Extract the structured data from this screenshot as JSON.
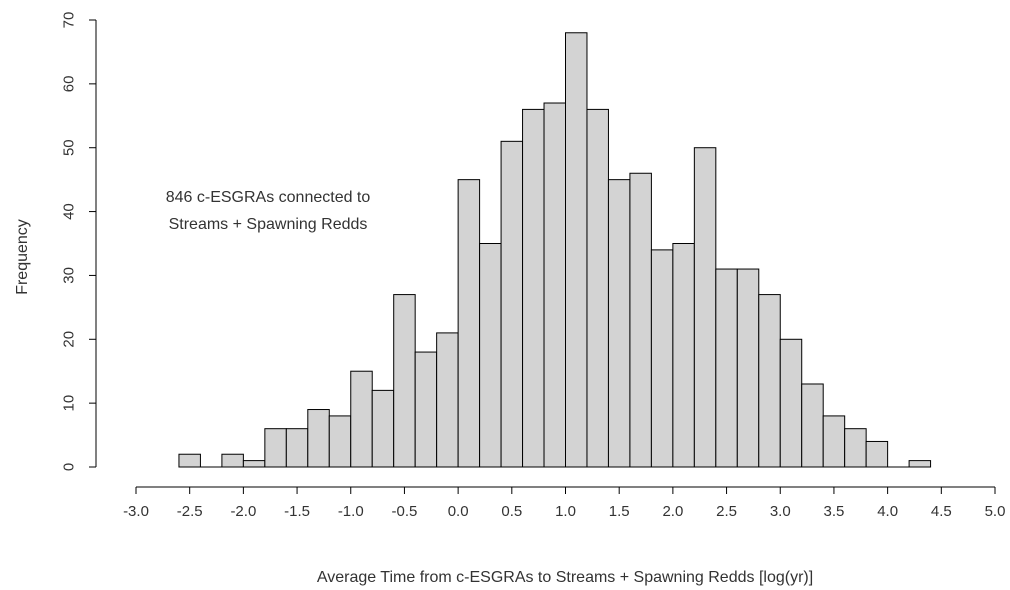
{
  "chart_data": {
    "type": "bar",
    "title": "",
    "xlabel": "Average Time from c-ESGRAs to Streams + Spawning Redds [log(yr)]",
    "ylabel": "Frequency",
    "annotation": [
      "846 c-ESGRAs connected to",
      "Streams + Spawning Redds"
    ],
    "xlim": [
      -3.0,
      5.0
    ],
    "ylim": [
      0,
      70
    ],
    "x_ticks": [
      "-3.0",
      "-2.5",
      "-2.0",
      "-1.5",
      "-1.0",
      "-0.5",
      "0.0",
      "0.5",
      "1.0",
      "1.5",
      "2.0",
      "2.5",
      "3.0",
      "3.5",
      "4.0",
      "4.5",
      "5.0"
    ],
    "y_ticks": [
      "0",
      "10",
      "20",
      "30",
      "40",
      "50",
      "60",
      "70"
    ],
    "bin_width": 0.2,
    "bin_starts": [
      -2.6,
      -2.4,
      -2.2,
      -2.0,
      -1.8,
      -1.6,
      -1.4,
      -1.2,
      -1.0,
      -0.8,
      -0.6,
      -0.4,
      -0.2,
      0.0,
      0.2,
      0.4,
      0.6,
      0.8,
      1.0,
      1.2,
      1.4,
      1.6,
      1.8,
      2.0,
      2.2,
      2.4,
      2.6,
      2.8,
      3.0,
      3.2,
      3.4,
      3.6,
      3.8,
      4.0,
      4.2
    ],
    "values": [
      2,
      0,
      2,
      1,
      6,
      6,
      9,
      8,
      15,
      12,
      27,
      18,
      21,
      45,
      35,
      51,
      56,
      57,
      68,
      56,
      45,
      46,
      34,
      35,
      50,
      31,
      31,
      27,
      20,
      13,
      8,
      6,
      4,
      0,
      1
    ],
    "grid": false,
    "colors": {
      "bar_fill": "#d3d3d3",
      "bar_stroke": "#000000"
    }
  }
}
